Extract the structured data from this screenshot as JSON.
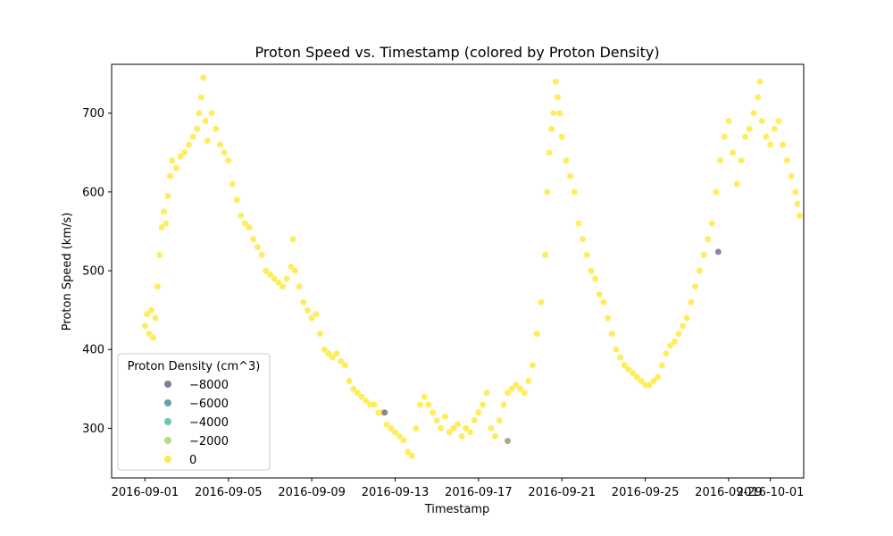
{
  "chart_data": {
    "type": "scatter",
    "title": "Proton Speed vs. Timestamp (colored by Proton Density)",
    "xlabel": "Timestamp",
    "ylabel": "Proton Speed (km/s)",
    "x_ticks": [
      "2016-09-01",
      "2016-09-05",
      "2016-09-09",
      "2016-09-13",
      "2016-09-17",
      "2016-09-21",
      "2016-09-25",
      "2016-09-29",
      "2016-10-01"
    ],
    "x_tick_days": [
      0,
      4,
      8,
      12,
      16,
      20,
      24,
      28,
      30
    ],
    "y_ticks": [
      300,
      400,
      500,
      600,
      700
    ],
    "xlim_days": [
      -1.6,
      31.6
    ],
    "ylim": [
      237,
      762
    ],
    "grid": false,
    "legend": {
      "title": "Proton Density (cm^3)",
      "placement": "lower-left",
      "entries": [
        {
          "label": "−8000",
          "color": "#7b6a8e"
        },
        {
          "label": "−6000",
          "color": "#5a96a5"
        },
        {
          "label": "−4000",
          "color": "#5cc59a"
        },
        {
          "label": "−2000",
          "color": "#a6db78"
        },
        {
          "label": "0",
          "color": "#fbe54a"
        }
      ]
    },
    "series": [
      {
        "color": "#fde725",
        "points": [
          [
            0.0,
            430
          ],
          [
            0.1,
            445
          ],
          [
            0.2,
            420
          ],
          [
            0.3,
            450
          ],
          [
            0.4,
            415
          ],
          [
            0.5,
            440
          ],
          [
            0.6,
            480
          ],
          [
            0.7,
            520
          ],
          [
            0.8,
            555
          ],
          [
            0.9,
            575
          ],
          [
            1.0,
            560
          ],
          [
            1.1,
            595
          ],
          [
            1.2,
            620
          ],
          [
            1.3,
            640
          ],
          [
            1.5,
            630
          ],
          [
            1.7,
            645
          ],
          [
            1.9,
            650
          ],
          [
            2.1,
            660
          ],
          [
            2.3,
            670
          ],
          [
            2.5,
            680
          ],
          [
            2.6,
            700
          ],
          [
            2.7,
            720
          ],
          [
            2.8,
            745
          ],
          [
            2.9,
            690
          ],
          [
            3.0,
            665
          ],
          [
            3.2,
            700
          ],
          [
            3.4,
            680
          ],
          [
            3.6,
            660
          ],
          [
            3.8,
            650
          ],
          [
            4.0,
            640
          ],
          [
            4.2,
            610
          ],
          [
            4.4,
            590
          ],
          [
            4.6,
            570
          ],
          [
            4.8,
            560
          ],
          [
            5.0,
            555
          ],
          [
            5.2,
            540
          ],
          [
            5.4,
            530
          ],
          [
            5.6,
            520
          ],
          [
            5.8,
            500
          ],
          [
            6.0,
            495
          ],
          [
            6.2,
            490
          ],
          [
            6.4,
            485
          ],
          [
            6.6,
            480
          ],
          [
            6.8,
            490
          ],
          [
            7.0,
            505
          ],
          [
            7.1,
            540
          ],
          [
            7.2,
            500
          ],
          [
            7.4,
            480
          ],
          [
            7.6,
            460
          ],
          [
            7.8,
            450
          ],
          [
            8.0,
            440
          ],
          [
            8.2,
            445
          ],
          [
            8.4,
            420
          ],
          [
            8.6,
            400
          ],
          [
            8.8,
            395
          ],
          [
            9.0,
            390
          ],
          [
            9.2,
            395
          ],
          [
            9.4,
            385
          ],
          [
            9.6,
            380
          ],
          [
            9.8,
            360
          ],
          [
            10.0,
            350
          ],
          [
            10.2,
            345
          ],
          [
            10.4,
            340
          ],
          [
            10.6,
            335
          ],
          [
            10.8,
            330
          ],
          [
            11.0,
            330
          ],
          [
            11.2,
            320
          ],
          [
            11.4,
            320
          ],
          [
            11.6,
            305
          ],
          [
            11.8,
            300
          ],
          [
            12.0,
            295
          ],
          [
            12.2,
            290
          ],
          [
            12.4,
            285
          ],
          [
            12.6,
            270
          ],
          [
            12.8,
            265
          ],
          [
            13.0,
            300
          ],
          [
            13.2,
            330
          ],
          [
            13.4,
            340
          ],
          [
            13.6,
            330
          ],
          [
            13.8,
            320
          ],
          [
            14.0,
            310
          ],
          [
            14.2,
            300
          ],
          [
            14.4,
            315
          ],
          [
            14.6,
            295
          ],
          [
            14.8,
            300
          ],
          [
            15.0,
            305
          ],
          [
            15.2,
            290
          ],
          [
            15.4,
            300
          ],
          [
            15.6,
            295
          ],
          [
            15.8,
            310
          ],
          [
            16.0,
            320
          ],
          [
            16.2,
            330
          ],
          [
            16.4,
            345
          ],
          [
            16.6,
            300
          ],
          [
            16.8,
            290
          ],
          [
            17.0,
            310
          ],
          [
            17.2,
            330
          ],
          [
            17.4,
            345
          ],
          [
            17.6,
            350
          ],
          [
            17.8,
            355
          ],
          [
            18.0,
            350
          ],
          [
            18.2,
            345
          ],
          [
            18.4,
            360
          ],
          [
            18.6,
            380
          ],
          [
            18.8,
            420
          ],
          [
            19.0,
            460
          ],
          [
            19.2,
            520
          ],
          [
            19.3,
            600
          ],
          [
            19.4,
            650
          ],
          [
            19.5,
            680
          ],
          [
            19.6,
            700
          ],
          [
            19.7,
            740
          ],
          [
            19.8,
            720
          ],
          [
            19.9,
            700
          ],
          [
            20.0,
            670
          ],
          [
            20.2,
            640
          ],
          [
            20.4,
            620
          ],
          [
            20.6,
            600
          ],
          [
            20.8,
            560
          ],
          [
            21.0,
            540
          ],
          [
            21.2,
            520
          ],
          [
            21.4,
            500
          ],
          [
            21.6,
            490
          ],
          [
            21.8,
            470
          ],
          [
            22.0,
            460
          ],
          [
            22.2,
            440
          ],
          [
            22.4,
            420
          ],
          [
            22.6,
            400
          ],
          [
            22.8,
            390
          ],
          [
            23.0,
            380
          ],
          [
            23.2,
            375
          ],
          [
            23.4,
            370
          ],
          [
            23.6,
            365
          ],
          [
            23.8,
            360
          ],
          [
            24.0,
            355
          ],
          [
            24.2,
            355
          ],
          [
            24.4,
            360
          ],
          [
            24.6,
            365
          ],
          [
            24.8,
            380
          ],
          [
            25.0,
            395
          ],
          [
            25.2,
            405
          ],
          [
            25.4,
            410
          ],
          [
            25.6,
            420
          ],
          [
            25.8,
            430
          ],
          [
            26.0,
            440
          ],
          [
            26.2,
            460
          ],
          [
            26.4,
            480
          ],
          [
            26.6,
            500
          ],
          [
            26.8,
            520
          ],
          [
            27.0,
            540
          ],
          [
            27.2,
            560
          ],
          [
            27.4,
            600
          ],
          [
            27.6,
            640
          ],
          [
            27.8,
            670
          ],
          [
            28.0,
            690
          ],
          [
            28.2,
            650
          ],
          [
            28.4,
            610
          ],
          [
            28.6,
            640
          ],
          [
            28.8,
            670
          ],
          [
            29.0,
            680
          ],
          [
            29.2,
            700
          ],
          [
            29.4,
            720
          ],
          [
            29.5,
            740
          ],
          [
            29.6,
            690
          ],
          [
            29.8,
            670
          ],
          [
            30.0,
            660
          ],
          [
            30.2,
            680
          ],
          [
            30.4,
            690
          ],
          [
            30.6,
            660
          ],
          [
            30.8,
            640
          ],
          [
            31.0,
            620
          ],
          [
            31.2,
            600
          ],
          [
            31.3,
            585
          ],
          [
            31.4,
            570
          ]
        ]
      },
      {
        "color": "#6e5a85",
        "points": [
          [
            11.5,
            320
          ],
          [
            27.5,
            524
          ]
        ]
      },
      {
        "color": "#8a8a7a",
        "points": [
          [
            17.4,
            284
          ]
        ]
      }
    ]
  }
}
